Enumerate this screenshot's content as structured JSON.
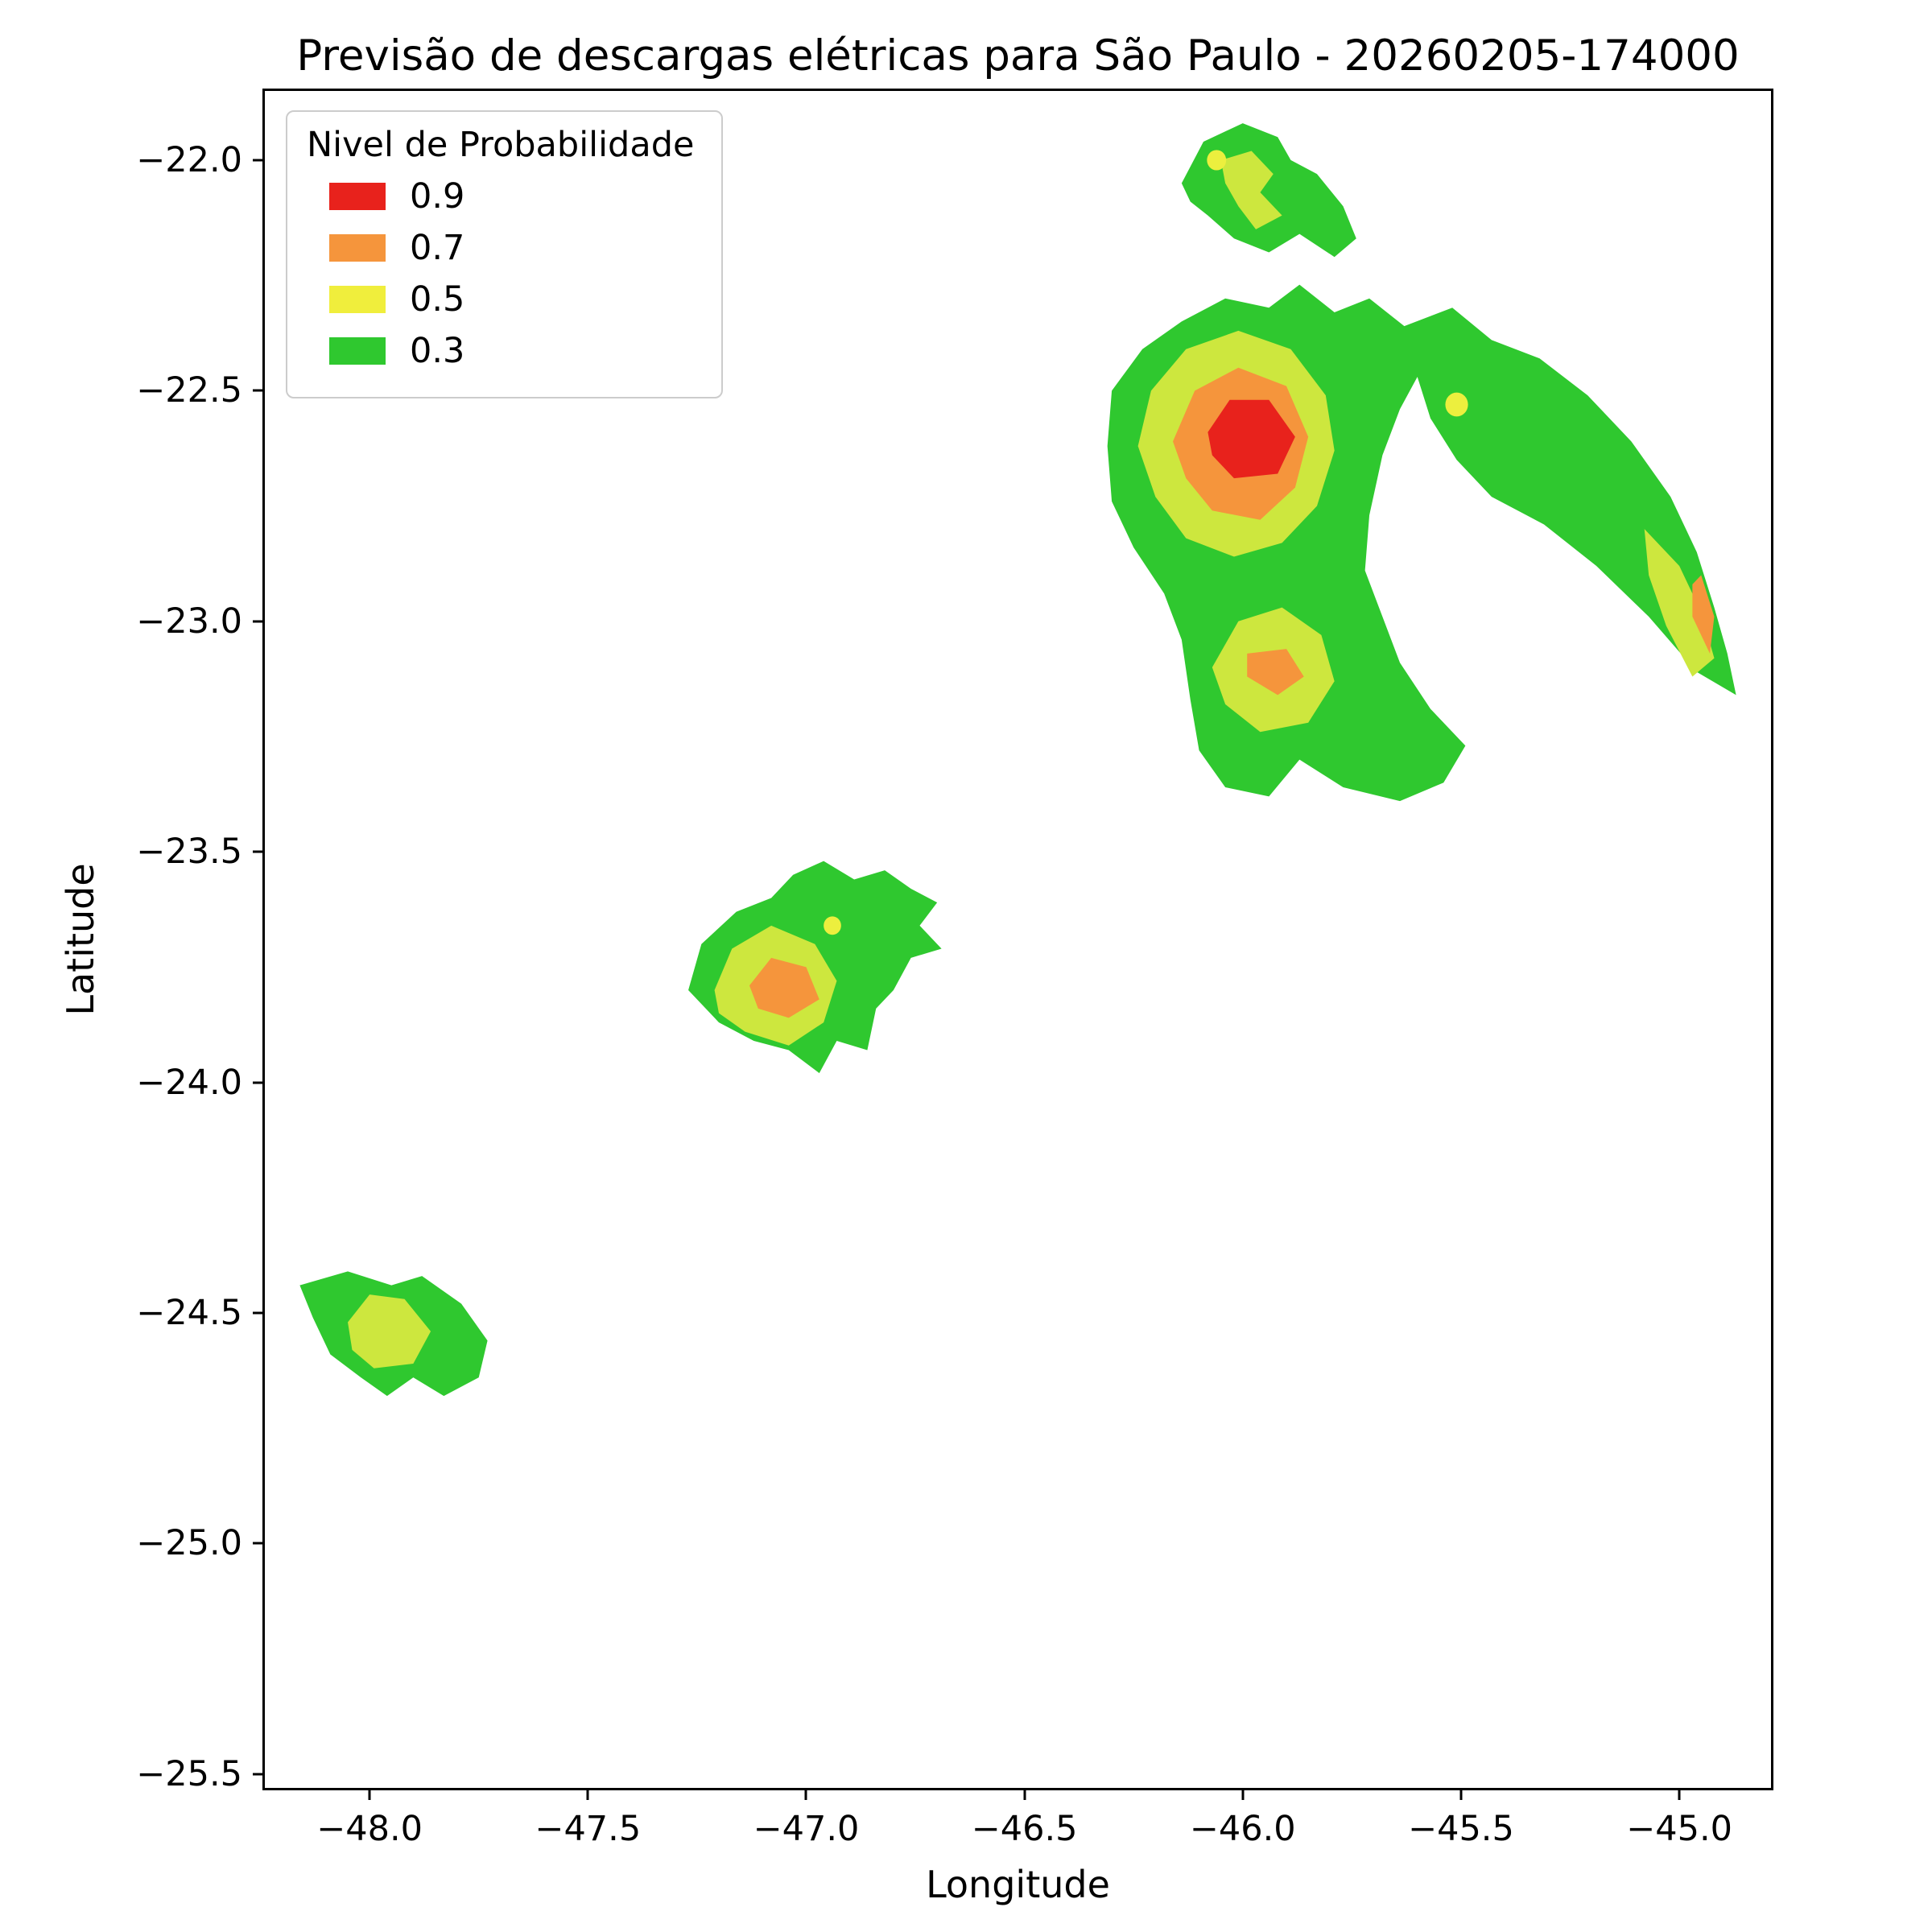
{
  "title": "Previsão de descargas elétricas para São Paulo - 20260205-174000",
  "xlabel": "Longitude",
  "ylabel": "Latitude",
  "legend": {
    "title": "Nivel de Probabilidade",
    "entries": [
      {
        "label": "0.9",
        "color": "#e8221c"
      },
      {
        "label": "0.7",
        "color": "#f5953c"
      },
      {
        "label": "0.5",
        "color": "#f0ee3c"
      },
      {
        "label": "0.3",
        "color": "#2fc82f"
      }
    ]
  },
  "axes": {
    "xlim": [
      -48.24,
      -44.79
    ],
    "ylim": [
      -25.53,
      -21.85
    ],
    "xticks": {
      "values": [
        -48.0,
        -47.5,
        -47.0,
        -46.5,
        -46.0,
        -45.5,
        -45.0
      ],
      "labels": [
        "−48.0",
        "−47.5",
        "−47.0",
        "−46.5",
        "−46.0",
        "−45.5",
        "−45.0"
      ]
    },
    "yticks": {
      "values": [
        -22.0,
        -22.5,
        -23.0,
        -23.5,
        -24.0,
        -24.5,
        -25.0,
        -25.5
      ],
      "labels": [
        "−22.0",
        "−22.5",
        "−23.0",
        "−23.5",
        "−24.0",
        "−24.5",
        "−25.0",
        "−25.5"
      ]
    }
  },
  "chart_data": {
    "type": "filled_contour_map",
    "title": "Previsão de descargas elétricas para São Paulo - 20260205-174000",
    "xlabel": "Longitude",
    "ylabel": "Latitude",
    "xlim": [
      -48.24,
      -44.79
    ],
    "ylim": [
      -25.53,
      -21.85
    ],
    "levels": [
      {
        "value": 0.3,
        "color": "#2fc82f"
      },
      {
        "value": 0.5,
        "color": "#f0ee3c"
      },
      {
        "value": 0.7,
        "color": "#f5953c"
      },
      {
        "value": 0.9,
        "color": "#e8221c"
      }
    ],
    "regions": [
      {
        "name": "north-blob-green",
        "level": 0.3,
        "color": "#2fc82f",
        "points": [
          [
            -46.14,
            -22.05
          ],
          [
            -46.09,
            -21.96
          ],
          [
            -46.0,
            -21.92
          ],
          [
            -45.92,
            -21.95
          ],
          [
            -45.89,
            -22.0
          ],
          [
            -45.83,
            -22.03
          ],
          [
            -45.77,
            -22.1
          ],
          [
            -45.74,
            -22.17
          ],
          [
            -45.79,
            -22.21
          ],
          [
            -45.87,
            -22.16
          ],
          [
            -45.94,
            -22.2
          ],
          [
            -46.02,
            -22.17
          ],
          [
            -46.08,
            -22.12
          ],
          [
            -46.12,
            -22.09
          ]
        ]
      },
      {
        "name": "north-blob-inner-yellow",
        "level": 0.5,
        "color": "#cde73e",
        "points": [
          [
            -46.05,
            -22.0
          ],
          [
            -45.98,
            -21.98
          ],
          [
            -45.93,
            -22.03
          ],
          [
            -45.96,
            -22.07
          ],
          [
            -45.91,
            -22.12
          ],
          [
            -45.97,
            -22.15
          ],
          [
            -46.01,
            -22.1
          ],
          [
            -46.04,
            -22.05
          ]
        ]
      },
      {
        "name": "north-blob-yellow-dot",
        "level": 0.5,
        "color": "#ecef3e",
        "circle": [
          -46.06,
          -22.0,
          0.022
        ]
      },
      {
        "name": "main-storm-green",
        "level": 0.3,
        "color": "#2fc82f",
        "points": [
          [
            -46.31,
            -22.62
          ],
          [
            -46.3,
            -22.5
          ],
          [
            -46.23,
            -22.41
          ],
          [
            -46.14,
            -22.35
          ],
          [
            -46.04,
            -22.3
          ],
          [
            -45.94,
            -22.32
          ],
          [
            -45.87,
            -22.27
          ],
          [
            -45.79,
            -22.33
          ],
          [
            -45.71,
            -22.3
          ],
          [
            -45.63,
            -22.36
          ],
          [
            -45.52,
            -22.32
          ],
          [
            -45.43,
            -22.39
          ],
          [
            -45.32,
            -22.43
          ],
          [
            -45.21,
            -22.51
          ],
          [
            -45.11,
            -22.61
          ],
          [
            -45.02,
            -22.73
          ],
          [
            -44.96,
            -22.85
          ],
          [
            -44.92,
            -22.97
          ],
          [
            -44.89,
            -23.07
          ],
          [
            -44.87,
            -23.16
          ],
          [
            -44.96,
            -23.11
          ],
          [
            -45.07,
            -22.99
          ],
          [
            -45.19,
            -22.88
          ],
          [
            -45.31,
            -22.79
          ],
          [
            -45.43,
            -22.73
          ],
          [
            -45.51,
            -22.65
          ],
          [
            -45.57,
            -22.56
          ],
          [
            -45.6,
            -22.47
          ],
          [
            -45.64,
            -22.54
          ],
          [
            -45.68,
            -22.64
          ],
          [
            -45.71,
            -22.77
          ],
          [
            -45.72,
            -22.89
          ],
          [
            -45.68,
            -22.99
          ],
          [
            -45.64,
            -23.09
          ],
          [
            -45.57,
            -23.19
          ],
          [
            -45.49,
            -23.27
          ],
          [
            -45.54,
            -23.35
          ],
          [
            -45.64,
            -23.39
          ],
          [
            -45.77,
            -23.36
          ],
          [
            -45.87,
            -23.3
          ],
          [
            -45.94,
            -23.38
          ],
          [
            -46.04,
            -23.36
          ],
          [
            -46.1,
            -23.28
          ],
          [
            -46.12,
            -23.17
          ],
          [
            -46.14,
            -23.04
          ],
          [
            -46.18,
            -22.94
          ],
          [
            -46.25,
            -22.84
          ],
          [
            -46.3,
            -22.74
          ]
        ]
      },
      {
        "name": "main-storm-yellow-ring",
        "level": 0.5,
        "color": "#cde73e",
        "points": [
          [
            -46.24,
            -22.62
          ],
          [
            -46.21,
            -22.5
          ],
          [
            -46.13,
            -22.41
          ],
          [
            -46.01,
            -22.37
          ],
          [
            -45.89,
            -22.41
          ],
          [
            -45.81,
            -22.51
          ],
          [
            -45.79,
            -22.63
          ],
          [
            -45.83,
            -22.75
          ],
          [
            -45.91,
            -22.83
          ],
          [
            -46.02,
            -22.86
          ],
          [
            -46.13,
            -22.82
          ],
          [
            -46.2,
            -22.73
          ]
        ]
      },
      {
        "name": "main-storm-orange-ring",
        "level": 0.7,
        "color": "#f5953c",
        "points": [
          [
            -46.16,
            -22.61
          ],
          [
            -46.11,
            -22.5
          ],
          [
            -46.01,
            -22.45
          ],
          [
            -45.9,
            -22.49
          ],
          [
            -45.85,
            -22.6
          ],
          [
            -45.88,
            -22.71
          ],
          [
            -45.96,
            -22.78
          ],
          [
            -46.07,
            -22.76
          ],
          [
            -46.13,
            -22.69
          ]
        ]
      },
      {
        "name": "main-storm-red-core",
        "level": 0.9,
        "color": "#e8221c",
        "points": [
          [
            -46.08,
            -22.59
          ],
          [
            -46.03,
            -22.52
          ],
          [
            -45.94,
            -22.52
          ],
          [
            -45.88,
            -22.6
          ],
          [
            -45.92,
            -22.68
          ],
          [
            -46.02,
            -22.69
          ],
          [
            -46.07,
            -22.64
          ]
        ]
      },
      {
        "name": "arm-yellow-dot",
        "level": 0.5,
        "color": "#ecef3e",
        "circle": [
          -45.51,
          -22.53,
          0.026
        ]
      },
      {
        "name": "arm-yellow-patch",
        "level": 0.5,
        "color": "#cde73e",
        "points": [
          [
            -45.08,
            -22.8
          ],
          [
            -45.0,
            -22.88
          ],
          [
            -44.95,
            -22.98
          ],
          [
            -44.92,
            -23.08
          ],
          [
            -44.97,
            -23.12
          ],
          [
            -45.03,
            -23.01
          ],
          [
            -45.07,
            -22.9
          ]
        ]
      },
      {
        "name": "arm-orange-sliver",
        "level": 0.7,
        "color": "#f5953c",
        "points": [
          [
            -44.95,
            -22.9
          ],
          [
            -44.92,
            -22.99
          ],
          [
            -44.93,
            -23.07
          ],
          [
            -44.97,
            -22.99
          ],
          [
            -44.97,
            -22.92
          ]
        ]
      },
      {
        "name": "south-cell-yellow",
        "level": 0.5,
        "color": "#cde73e",
        "points": [
          [
            -46.07,
            -23.1
          ],
          [
            -46.01,
            -23.0
          ],
          [
            -45.91,
            -22.97
          ],
          [
            -45.82,
            -23.03
          ],
          [
            -45.79,
            -23.13
          ],
          [
            -45.85,
            -23.22
          ],
          [
            -45.96,
            -23.24
          ],
          [
            -46.04,
            -23.18
          ]
        ]
      },
      {
        "name": "south-cell-orange",
        "level": 0.7,
        "color": "#f5953c",
        "points": [
          [
            -45.99,
            -23.07
          ],
          [
            -45.9,
            -23.06
          ],
          [
            -45.86,
            -23.12
          ],
          [
            -45.92,
            -23.16
          ],
          [
            -45.99,
            -23.12
          ]
        ]
      },
      {
        "name": "central-blob-green",
        "level": 0.3,
        "color": "#2fc82f",
        "points": [
          [
            -47.27,
            -23.8
          ],
          [
            -47.24,
            -23.7
          ],
          [
            -47.16,
            -23.63
          ],
          [
            -47.08,
            -23.6
          ],
          [
            -47.03,
            -23.55
          ],
          [
            -46.96,
            -23.52
          ],
          [
            -46.89,
            -23.56
          ],
          [
            -46.82,
            -23.54
          ],
          [
            -46.76,
            -23.58
          ],
          [
            -46.7,
            -23.61
          ],
          [
            -46.74,
            -23.66
          ],
          [
            -46.69,
            -23.71
          ],
          [
            -46.76,
            -23.73
          ],
          [
            -46.8,
            -23.8
          ],
          [
            -46.84,
            -23.84
          ],
          [
            -46.86,
            -23.93
          ],
          [
            -46.93,
            -23.91
          ],
          [
            -46.97,
            -23.98
          ],
          [
            -47.04,
            -23.93
          ],
          [
            -47.12,
            -23.91
          ],
          [
            -47.2,
            -23.87
          ]
        ]
      },
      {
        "name": "central-blob-yellow-ring",
        "level": 0.5,
        "color": "#cde73e",
        "points": [
          [
            -47.21,
            -23.8
          ],
          [
            -47.17,
            -23.71
          ],
          [
            -47.08,
            -23.66
          ],
          [
            -46.98,
            -23.7
          ],
          [
            -46.93,
            -23.78
          ],
          [
            -46.96,
            -23.87
          ],
          [
            -47.04,
            -23.92
          ],
          [
            -47.14,
            -23.89
          ],
          [
            -47.2,
            -23.85
          ]
        ]
      },
      {
        "name": "central-blob-orange-core",
        "level": 0.7,
        "color": "#f5953c",
        "points": [
          [
            -47.13,
            -23.79
          ],
          [
            -47.08,
            -23.73
          ],
          [
            -47.0,
            -23.75
          ],
          [
            -46.97,
            -23.82
          ],
          [
            -47.04,
            -23.86
          ],
          [
            -47.11,
            -23.84
          ]
        ]
      },
      {
        "name": "central-blob-yellow-dot",
        "level": 0.5,
        "color": "#ecef3e",
        "circle": [
          -46.94,
          -23.66,
          0.02
        ]
      },
      {
        "name": "southwest-blob-green",
        "level": 0.3,
        "color": "#2fc82f",
        "points": [
          [
            -48.16,
            -24.44
          ],
          [
            -48.05,
            -24.41
          ],
          [
            -47.95,
            -24.44
          ],
          [
            -47.88,
            -24.42
          ],
          [
            -47.79,
            -24.48
          ],
          [
            -47.73,
            -24.56
          ],
          [
            -47.75,
            -24.64
          ],
          [
            -47.83,
            -24.68
          ],
          [
            -47.9,
            -24.64
          ],
          [
            -47.96,
            -24.68
          ],
          [
            -48.02,
            -24.64
          ],
          [
            -48.09,
            -24.59
          ],
          [
            -48.13,
            -24.51
          ]
        ]
      },
      {
        "name": "southwest-blob-inner-yellow",
        "level": 0.5,
        "color": "#cde73e",
        "points": [
          [
            -48.05,
            -24.52
          ],
          [
            -48.0,
            -24.46
          ],
          [
            -47.92,
            -24.47
          ],
          [
            -47.86,
            -24.54
          ],
          [
            -47.9,
            -24.61
          ],
          [
            -47.99,
            -24.62
          ],
          [
            -48.04,
            -24.58
          ]
        ]
      }
    ]
  }
}
